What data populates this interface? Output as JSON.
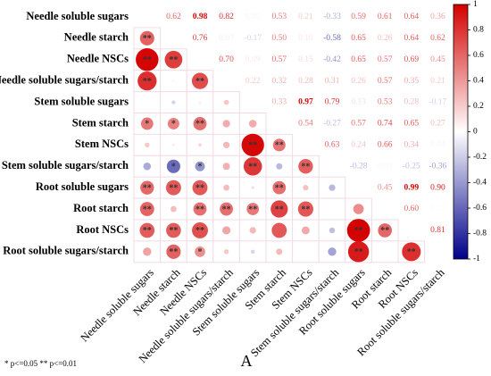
{
  "chart_data": {
    "type": "correlation",
    "variables": [
      "Needle soluble sugars",
      "Needle starch",
      "Needle NSCs",
      "Needle soluble sugars/starch",
      "Stem soluble sugars",
      "Stem starch",
      "Stem NSCs",
      "Stem soluble sugars/starch",
      "Root soluble sugars",
      "Root starch",
      "Root NSCs",
      "Root soluble sugars/starch"
    ],
    "values": [
      [
        0.62,
        0.98,
        0.82,
        0.05,
        0.53,
        0.21,
        -0.33,
        0.59,
        0.61,
        0.64,
        0.36
      ],
      [
        0.76,
        0.07,
        -0.17,
        0.5,
        0.1,
        -0.58,
        0.65,
        0.26,
        0.64,
        0.62
      ],
      [
        0.7,
        0.09,
        0.57,
        0.15,
        -0.42,
        0.65,
        0.57,
        0.69,
        0.45
      ],
      [
        0.22,
        0.32,
        0.28,
        0.31,
        0.26,
        0.57,
        0.35,
        0.21
      ],
      [
        0.33,
        0.97,
        0.79,
        0.13,
        0.53,
        0.28,
        -0.17
      ],
      [
        0.54,
        -0.27,
        0.57,
        0.74,
        0.65,
        0.27
      ],
      [
        0.63,
        0.24,
        0.66,
        0.34,
        0.04
      ],
      [
        -0.28,
        0.03,
        -0.25,
        -0.36
      ],
      [
        0.45,
        0.99,
        0.9
      ],
      [
        0.6,
        0.02
      ],
      [
        0.81
      ]
    ],
    "value_labels": [
      [
        "0.62",
        "0.98",
        "0.82",
        "0.05",
        "0.53",
        "0.21",
        "-0.33",
        "0.59",
        "0.61",
        "0.64",
        "0.36"
      ],
      [
        "0.76",
        "0.07",
        "-0.17",
        "0.50",
        "0.10",
        "-0.58",
        "0.65",
        "0.26",
        "0.64",
        "0.62"
      ],
      [
        "0.70",
        "0.09",
        "0.57",
        "0.15",
        "-0.42",
        "0.65",
        "0.57",
        "0.69",
        "0.45"
      ],
      [
        "0.22",
        "0.32",
        "0.28",
        "0.31",
        "0.26",
        "0.57",
        "0.35",
        "0.21"
      ],
      [
        "0.33",
        "0.97",
        "0.79",
        "0.13",
        "0.53",
        "0.28",
        "-0.17"
      ],
      [
        "0.54",
        "-0.27",
        "0.57",
        "0.74",
        "0.65",
        "0.27"
      ],
      [
        "0.63",
        "0.24",
        "0.66",
        "0.34",
        "0.04"
      ],
      [
        "-0.28",
        "0.03",
        "-0.25",
        "-0.36"
      ],
      [
        "0.45",
        "0.99",
        "0.90"
      ],
      [
        "0.60",
        "0.02"
      ],
      [
        "0.81"
      ]
    ],
    "stars": [
      [],
      [
        "**"
      ],
      [
        "**",
        "**"
      ],
      [
        "**",
        null,
        "**"
      ],
      [
        null,
        null,
        null,
        null
      ],
      [
        "*",
        "*",
        "**",
        null,
        null
      ],
      [
        null,
        null,
        null,
        null,
        "**",
        "**"
      ],
      [
        null,
        "*",
        "*",
        null,
        "**",
        null,
        "**"
      ],
      [
        "**",
        "**",
        "**",
        null,
        null,
        "**",
        null,
        null
      ],
      [
        "**",
        null,
        "**",
        "**",
        "**",
        "**",
        "**",
        null,
        null
      ],
      [
        "**",
        "**",
        "**",
        null,
        null,
        null,
        null,
        null,
        "**",
        "**"
      ],
      [
        null,
        "**",
        "*",
        null,
        null,
        null,
        null,
        null,
        "**",
        null,
        "**"
      ]
    ],
    "colormap": [
      "#00008b",
      "#ffffff",
      "#d40000"
    ],
    "colorbar_lim": [
      -1,
      1
    ],
    "colorbar_ticks": [
      1,
      0.8,
      0.6,
      0.4,
      0.2,
      0,
      -0.2,
      -0.4,
      -0.6,
      -0.8,
      -1
    ],
    "footnote": "* p<=0.05  ** p<=0.01",
    "panel_label": "A"
  }
}
